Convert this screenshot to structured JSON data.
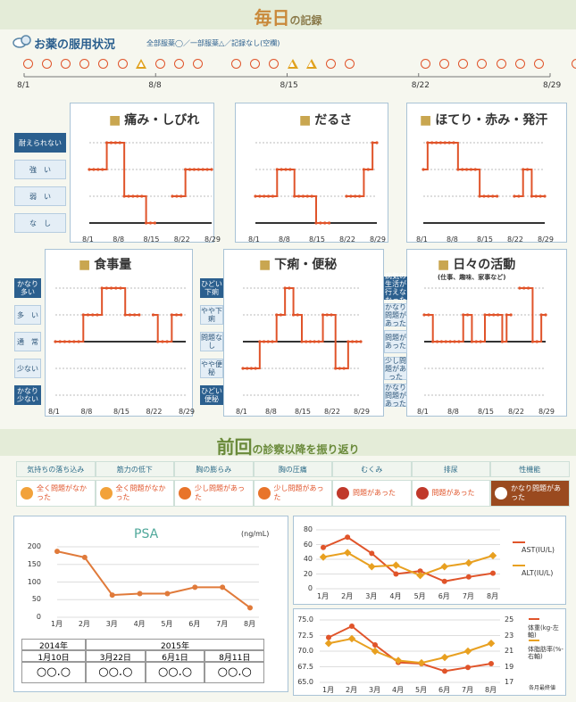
{
  "header": {
    "title_big": "毎日",
    "title_small": "の記録"
  },
  "meds": {
    "title": "お薬の服用状況",
    "legend": "全部服薬◯／一部服薬△／記録なし(空欄)",
    "days": [
      "o",
      "o",
      "o",
      "o",
      "o",
      "o",
      "t",
      "o",
      "o",
      "o",
      "",
      "o",
      "o",
      "o",
      "t",
      "t",
      "o",
      "o",
      "",
      "",
      "",
      "o",
      "o",
      "o",
      "o",
      "o",
      "o",
      "o",
      "",
      "o"
    ],
    "axis_labels": [
      "8/1",
      "8/8",
      "8/15",
      "8/22",
      "8/29"
    ]
  },
  "colors": {
    "line": "#e0542a",
    "accent": "#c9893a",
    "orange2": "#e8a020",
    "blue": "#2b5f8e"
  },
  "symptoms": [
    {
      "title": "痛み・しびれ",
      "icon": "lightning-icon",
      "levels": [
        "耐えられない",
        "強　い",
        "弱　い",
        "な　し"
      ],
      "dark_levels": [
        0
      ]
    },
    {
      "title": "だるさ",
      "icon": "tired-person-icon",
      "levels": [
        "耐えられない",
        "強　い",
        "弱　い",
        "な　し"
      ],
      "dark_levels": [
        0
      ]
    },
    {
      "title": "ほてり・赤み・発汗",
      "icon": "heat-waves-icon",
      "levels": [
        "耐えられない",
        "強　い",
        "弱　い",
        "な　し"
      ],
      "dark_levels": [
        0
      ]
    },
    {
      "title": "食事量",
      "icon": "bowl-icon",
      "levels": [
        "かなり多い",
        "多　い",
        "通　常",
        "少ない",
        "かなり少ない"
      ],
      "dark_levels": [
        0,
        4
      ]
    },
    {
      "title": "下痢・便秘",
      "icon": "toilet-paper-icon",
      "levels": [
        "ひどい下痢",
        "やや下痢",
        "問題なし",
        "やや便秘",
        "ひどい便秘"
      ],
      "dark_levels": [
        0,
        4
      ]
    },
    {
      "title": "日々の活動",
      "subtitle": "(仕事、趣味、家事など)",
      "icon": "calendar-icon",
      "levels": [
        "病気の生活が行えなかった",
        "かなり問題があった",
        "問題があった",
        "少し問題があった",
        "かなり問題があった"
      ],
      "dark_levels": [
        0
      ]
    }
  ],
  "chart_data": [
    {
      "type": "line",
      "title": "痛み・しびれ",
      "x": [
        "8/1",
        "8/2",
        "8/3",
        "8/4",
        "8/5",
        "8/6",
        "8/7",
        "8/8",
        "8/9",
        "8/10",
        "8/11",
        "8/12",
        "8/13",
        "8/14",
        "8/15",
        "8/16",
        "8/17",
        "8/18",
        "8/19",
        "8/20",
        "8/21",
        "8/22",
        "8/23",
        "8/24",
        "8/25",
        "8/26",
        "8/27",
        "8/28",
        "8/29"
      ],
      "y": [
        2,
        2,
        2,
        2,
        3,
        3,
        3,
        3,
        1,
        1,
        1,
        1,
        1,
        0,
        0,
        0,
        null,
        null,
        null,
        1,
        1,
        1,
        2,
        2,
        2,
        2,
        2,
        2,
        2
      ],
      "ylim": [
        0,
        3
      ]
    },
    {
      "type": "line",
      "title": "だるさ",
      "x": [
        "8/1",
        "8/2",
        "8/3",
        "8/4",
        "8/5",
        "8/6",
        "8/7",
        "8/8",
        "8/9",
        "8/10",
        "8/11",
        "8/12",
        "8/13",
        "8/14",
        "8/15",
        "8/16",
        "8/17",
        "8/18",
        "8/19",
        "8/20",
        "8/21",
        "8/22",
        "8/23",
        "8/24",
        "8/25",
        "8/26",
        "8/27",
        "8/28",
        "8/29"
      ],
      "y": [
        1,
        1,
        1,
        1,
        1,
        2,
        2,
        2,
        2,
        1,
        1,
        1,
        1,
        1,
        0,
        0,
        0,
        0,
        null,
        null,
        null,
        1,
        1,
        1,
        1,
        2,
        2,
        3,
        3
      ],
      "ylim": [
        0,
        3
      ]
    },
    {
      "type": "line",
      "title": "ほてり・赤み・発汗",
      "x": [
        "8/1",
        "8/2",
        "8/3",
        "8/4",
        "8/5",
        "8/6",
        "8/7",
        "8/8",
        "8/9",
        "8/10",
        "8/11",
        "8/12",
        "8/13",
        "8/14",
        "8/15",
        "8/16",
        "8/17",
        "8/18",
        "8/19",
        "8/20",
        "8/21",
        "8/22",
        "8/23",
        "8/24",
        "8/25",
        "8/26",
        "8/27",
        "8/28",
        "8/29"
      ],
      "y": [
        2,
        3,
        3,
        3,
        3,
        3,
        3,
        3,
        2,
        2,
        2,
        2,
        2,
        1,
        1,
        1,
        1,
        1,
        null,
        null,
        null,
        1,
        1,
        2,
        2,
        1,
        1,
        1,
        1
      ],
      "ylim": [
        0,
        3
      ]
    },
    {
      "type": "line",
      "title": "食事量",
      "x": [
        "8/1",
        "8/2",
        "8/3",
        "8/4",
        "8/5",
        "8/6",
        "8/7",
        "8/8",
        "8/9",
        "8/10",
        "8/11",
        "8/12",
        "8/13",
        "8/14",
        "8/15",
        "8/16",
        "8/17",
        "8/18",
        "8/19",
        "8/20",
        "8/21",
        "8/22",
        "8/23",
        "8/24",
        "8/25",
        "8/26",
        "8/27",
        "8/28",
        "8/29"
      ],
      "y": [
        2,
        2,
        2,
        2,
        2,
        2,
        3,
        3,
        3,
        3,
        4,
        4,
        4,
        4,
        4,
        3,
        3,
        3,
        3,
        null,
        null,
        3,
        2,
        2,
        2,
        3,
        3,
        3,
        null
      ],
      "ylim": [
        0,
        4
      ]
    },
    {
      "type": "line",
      "title": "下痢・便秘",
      "x": [
        "8/1",
        "8/2",
        "8/3",
        "8/4",
        "8/5",
        "8/6",
        "8/7",
        "8/8",
        "8/9",
        "8/10",
        "8/11",
        "8/12",
        "8/13",
        "8/14",
        "8/15",
        "8/16",
        "8/17",
        "8/18",
        "8/19",
        "8/20",
        "8/21",
        "8/22",
        "8/23",
        "8/24",
        "8/25",
        "8/26",
        "8/27",
        "8/28",
        "8/29"
      ],
      "y": [
        1,
        1,
        1,
        1,
        2,
        2,
        2,
        2,
        3,
        3,
        4,
        4,
        3,
        3,
        2,
        2,
        2,
        2,
        2,
        3,
        3,
        3,
        1,
        1,
        1,
        2,
        2,
        2,
        2
      ],
      "ylim": [
        0,
        4
      ]
    },
    {
      "type": "line",
      "title": "日々の活動",
      "x": [
        "8/1",
        "8/2",
        "8/3",
        "8/4",
        "8/5",
        "8/6",
        "8/7",
        "8/8",
        "8/9",
        "8/10",
        "8/11",
        "8/12",
        "8/13",
        "8/14",
        "8/15",
        "8/16",
        "8/17",
        "8/18",
        "8/19",
        "8/20",
        "8/21",
        "8/22",
        "8/23",
        "8/24",
        "8/25",
        "8/26",
        "8/27",
        "8/28",
        "8/29"
      ],
      "y": [
        3,
        3,
        2,
        2,
        2,
        2,
        2,
        2,
        2,
        3,
        3,
        2,
        2,
        2,
        3,
        3,
        3,
        3,
        2,
        3,
        3,
        null,
        4,
        4,
        4,
        2,
        2,
        3,
        3
      ],
      "ylim": [
        0,
        4
      ]
    },
    {
      "type": "line",
      "title": "PSA",
      "ylabel": "(ng/mL)",
      "categories": [
        "1月",
        "2月",
        "3月",
        "4月",
        "5月",
        "6月",
        "7月",
        "8月"
      ],
      "values": [
        187,
        170,
        63,
        67,
        67,
        85,
        85,
        27
      ],
      "ylim": [
        0,
        200
      ]
    },
    {
      "type": "line",
      "categories": [
        "1月",
        "2月",
        "3月",
        "4月",
        "5月",
        "6月",
        "7月",
        "8月"
      ],
      "series": [
        {
          "name": "AST(IU/L)",
          "values": [
            56,
            70,
            48,
            20,
            24,
            10,
            16,
            21
          ]
        },
        {
          "name": "ALT(IU/L)",
          "values": [
            43,
            49,
            30,
            32,
            18,
            30,
            35,
            45
          ]
        }
      ],
      "ylim": [
        0,
        80
      ]
    },
    {
      "type": "line",
      "categories": [
        "1月",
        "2月",
        "3月",
        "4月",
        "5月",
        "6月",
        "7月",
        "8月"
      ],
      "series": [
        {
          "name": "体重(kg-左軸)",
          "values": [
            72.2,
            74.0,
            71.0,
            68.2,
            68.0,
            66.8,
            67.4,
            68.0
          ]
        },
        {
          "name": "体脂肪率(%-右軸)",
          "values": [
            22.0,
            22.6,
            21.0,
            19.8,
            19.5,
            20.2,
            21.0,
            22.0
          ]
        }
      ],
      "ylim": [
        65,
        75
      ],
      "y2lim": [
        17,
        25
      ]
    }
  ],
  "review": {
    "title_big1": "前回",
    "title_small1": "の",
    "title_rest": "診察以降を振り返り",
    "headers": [
      "気持ちの落ち込み",
      "筋力の低下",
      "胸の膨らみ",
      "胸の圧痛",
      "むくみ",
      "排尿",
      "性機能"
    ],
    "cells": [
      "全く問題がなかった",
      "全く問題がなかった",
      "少し問題があった",
      "少し問題があった",
      "問題があった",
      "問題があった",
      "かなり問題があった"
    ],
    "face_colors": [
      "#f2a23a",
      "#f2a23a",
      "#e8742a",
      "#e8742a",
      "#c0392b",
      "#c0392b",
      "#ffffff"
    ],
    "selected": [
      6
    ]
  },
  "psa_table": {
    "year_2014": "2014年",
    "year_2015": "2015年",
    "dates": [
      "1月10日",
      "3月22日",
      "6月1日",
      "8月11日"
    ],
    "values": [
      "○○.○",
      "○○.○",
      "○○.○",
      "○○.○"
    ]
  },
  "weight_note": "各月最終値"
}
